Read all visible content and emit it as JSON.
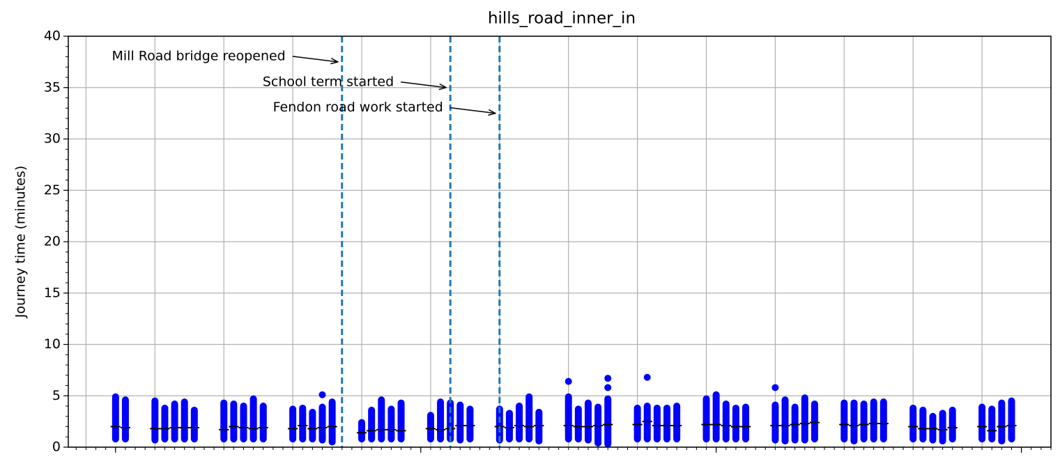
{
  "chart_data": {
    "type": "strip",
    "title": "hills_road_inner_in",
    "y_label": "Journey time (minutes)",
    "ylim": [
      0,
      40
    ],
    "yticks": [
      0,
      5,
      10,
      15,
      20,
      25,
      30,
      35,
      40
    ],
    "yminor_step": 1,
    "xlim": [
      -1.8,
      98
    ],
    "xticks": [
      3,
      34,
      64,
      95
    ],
    "xgrid": [
      0,
      7,
      14,
      21,
      28,
      35,
      42,
      49,
      56,
      63,
      70,
      77,
      84,
      91,
      98
    ],
    "xminor_step": 1,
    "grid": true,
    "point_color": "#0000ff",
    "median_color": "#000000",
    "event_color": "#1f77b4",
    "days": [
      3,
      4,
      7,
      8,
      9,
      10,
      11,
      14,
      15,
      16,
      17,
      18,
      21,
      22,
      23,
      24,
      25,
      28,
      29,
      30,
      31,
      32,
      35,
      36,
      37,
      38,
      39,
      42,
      43,
      44,
      45,
      46,
      49,
      50,
      51,
      52,
      53,
      56,
      57,
      58,
      59,
      60,
      63,
      64,
      65,
      66,
      67,
      70,
      71,
      72,
      73,
      74,
      77,
      78,
      79,
      80,
      81,
      84,
      85,
      86,
      87,
      88,
      91,
      92,
      93,
      94
    ],
    "min": [
      0.8,
      0.8,
      0.7,
      0.8,
      0.8,
      0.8,
      0.8,
      0.8,
      0.8,
      0.8,
      0.8,
      0.8,
      0.8,
      0.8,
      0.8,
      0.7,
      0.5,
      0.8,
      0.8,
      0.8,
      0.8,
      0.8,
      0.8,
      0.8,
      0.8,
      0.7,
      0.8,
      0.7,
      0.8,
      0.8,
      0.8,
      0.6,
      0.8,
      0.8,
      0.7,
      0.4,
      0.3,
      0.8,
      0.8,
      0.8,
      0.8,
      0.8,
      0.8,
      0.8,
      0.8,
      0.8,
      0.8,
      0.7,
      0.6,
      0.7,
      0.7,
      0.8,
      0.8,
      0.6,
      0.8,
      0.8,
      0.8,
      0.8,
      0.8,
      0.7,
      0.6,
      0.8,
      0.8,
      0.8,
      0.6,
      0.8
    ],
    "max": [
      4.9,
      4.6,
      4.5,
      3.8,
      4.2,
      4.4,
      3.6,
      4.3,
      4.2,
      4.0,
      4.7,
      4.0,
      3.7,
      3.8,
      3.4,
      3.9,
      4.4,
      2.4,
      3.6,
      4.6,
      3.7,
      4.3,
      3.1,
      4.4,
      4.3,
      4.1,
      3.7,
      3.7,
      3.3,
      4.0,
      4.9,
      3.4,
      4.9,
      3.7,
      4.3,
      3.9,
      4.7,
      3.8,
      4.0,
      3.8,
      3.8,
      4.0,
      4.7,
      5.1,
      4.2,
      3.8,
      3.9,
      4.1,
      4.6,
      3.9,
      4.8,
      4.2,
      4.3,
      4.3,
      4.2,
      4.4,
      4.4,
      3.8,
      3.6,
      3.0,
      3.3,
      3.6,
      3.9,
      3.7,
      4.3,
      4.5
    ],
    "median": [
      2.0,
      1.9,
      1.8,
      1.8,
      1.9,
      1.9,
      1.9,
      1.7,
      2.0,
      1.9,
      1.8,
      1.9,
      1.8,
      2.1,
      1.8,
      1.9,
      2.0,
      1.4,
      1.6,
      1.7,
      1.7,
      1.6,
      1.8,
      1.7,
      1.8,
      2.1,
      2.1,
      2.0,
      1.9,
      2.1,
      2.0,
      2.1,
      2.1,
      2.0,
      2.0,
      2.1,
      2.2,
      2.2,
      2.5,
      2.1,
      2.1,
      2.1,
      2.2,
      2.2,
      2.1,
      2.0,
      2.0,
      2.1,
      2.1,
      2.2,
      2.3,
      2.4,
      2.2,
      2.1,
      2.2,
      2.3,
      2.3,
      2.0,
      1.8,
      1.8,
      1.7,
      1.9,
      2.0,
      1.6,
      2.0,
      2.1
    ],
    "outliers": [
      {
        "x": 24,
        "y": 5.1
      },
      {
        "x": 49,
        "y": 6.4
      },
      {
        "x": 53,
        "y": 5.8
      },
      {
        "x": 53,
        "y": 6.7
      },
      {
        "x": 57,
        "y": 6.8
      },
      {
        "x": 70,
        "y": 5.8
      }
    ],
    "events": [
      {
        "x": 26,
        "text": "Mill Road bridge reopened",
        "y": 37.5
      },
      {
        "x": 37,
        "text": "School term started",
        "y": 35
      },
      {
        "x": 42,
        "text": "Fendon road work started",
        "y": 32.5
      }
    ]
  }
}
